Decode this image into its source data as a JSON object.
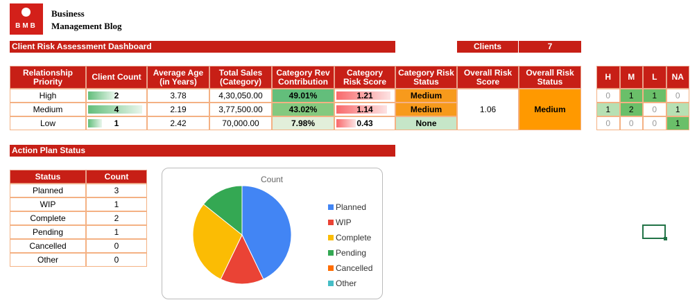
{
  "logo": {
    "mark": "BMB",
    "name_line1": "Business",
    "name_line2": "Management Blog"
  },
  "dashboard": {
    "title": "Client Risk Assessment Dashboard",
    "clients_label": "Clients",
    "clients_value": 7
  },
  "risk_table": {
    "headers": [
      "Relationship Priority",
      "Client Count",
      "Average Age (in Years)",
      "Total Sales (Category)",
      "Category Rev Contribution",
      "Category Risk Score",
      "Category Risk Status",
      "Overall Risk Score",
      "Overall Risk Status"
    ],
    "rows": [
      {
        "priority": "High",
        "client_count": 2,
        "average_age": 3.78,
        "total_sales": "4,30,050.00",
        "rev_contribution": "49.01%",
        "risk_score": 1.21,
        "risk_status": "Medium"
      },
      {
        "priority": "Medium",
        "client_count": 4,
        "average_age": 2.19,
        "total_sales": "3,77,500.00",
        "rev_contribution": "43.02%",
        "risk_score": 1.14,
        "risk_status": "Medium"
      },
      {
        "priority": "Low",
        "client_count": 1,
        "average_age": 2.42,
        "total_sales": "70,000.00",
        "rev_contribution": "7.98%",
        "risk_score": 0.43,
        "risk_status": "None"
      }
    ],
    "overall_risk_score": 1.06,
    "overall_risk_status": "Medium"
  },
  "level_table": {
    "headers": [
      "H",
      "M",
      "L",
      "NA"
    ],
    "rows": [
      [
        0,
        1,
        1,
        0
      ],
      [
        1,
        2,
        0,
        1
      ],
      [
        0,
        0,
        0,
        1
      ]
    ]
  },
  "action_plan": {
    "title": "Action Plan Status",
    "headers": [
      "Status",
      "Count"
    ],
    "rows": [
      [
        "Planned",
        3
      ],
      [
        "WIP",
        1
      ],
      [
        "Complete",
        2
      ],
      [
        "Pending",
        1
      ],
      [
        "Cancelled",
        0
      ],
      [
        "Other",
        0
      ]
    ]
  },
  "pie_chart": {
    "type": "pie",
    "title": "Count",
    "categories": [
      "Planned",
      "WIP",
      "Complete",
      "Pending",
      "Cancelled",
      "Other"
    ],
    "values": [
      3,
      1,
      2,
      1,
      0,
      0
    ],
    "colors": [
      "#4285f4",
      "#ea4335",
      "#fbbc04",
      "#34a853",
      "#ff6d01",
      "#46bdc6"
    ]
  }
}
